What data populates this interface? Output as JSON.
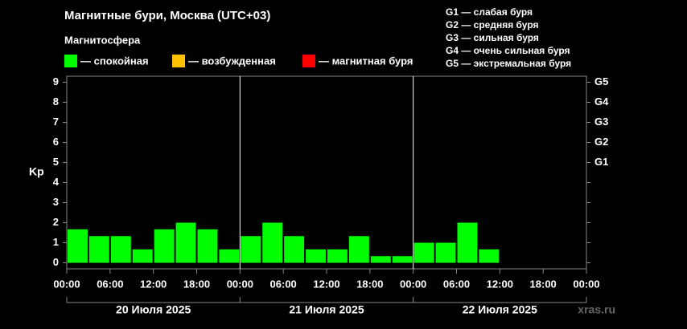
{
  "chart_data": {
    "type": "bar",
    "title": "Магнитные бури, Москва (UTC+03)",
    "legend_title": "Магнитосфера",
    "legend": [
      {
        "name": "— спокойная",
        "color": "#00ff00"
      },
      {
        "name": "— возбужденная",
        "color": "#ffc000"
      },
      {
        "name": "— магнитная буря",
        "color": "#ff0000"
      }
    ],
    "storm_levels": [
      "G1 — слабая буря",
      "G2 — средняя буря",
      "G3 — сильная буря",
      "G4 — очень сильная буря",
      "G5 — экстремальная буря"
    ],
    "y_label": "Kp",
    "values": [
      1.67,
      1.33,
      1.33,
      0.67,
      1.67,
      2,
      1.67,
      0.67,
      1.33,
      2,
      1.33,
      0.67,
      0.67,
      1.33,
      0.33,
      0.33,
      1,
      1,
      2,
      0.67,
      null,
      null,
      null,
      null
    ],
    "xtick_labels": [
      "00:00",
      "06:00",
      "12:00",
      "18:00",
      "00:00",
      "06:00",
      "12:00",
      "18:00",
      "00:00",
      "06:00",
      "12:00",
      "18:00",
      "00:00"
    ],
    "days": [
      "20 Июля 2025",
      "21 Июля 2025",
      "22 Июля 2025"
    ],
    "ylim": [
      -0.3,
      9.3
    ],
    "yticks": [
      0,
      1,
      2,
      3,
      4,
      5,
      6,
      7,
      8,
      9
    ],
    "y2lim": [
      -0.3,
      9.3
    ],
    "y2ticks": [
      {
        "value": 5,
        "label": "G1"
      },
      {
        "value": 6,
        "label": "G2"
      },
      {
        "value": 7,
        "label": "G3"
      },
      {
        "value": 8,
        "label": "G4"
      },
      {
        "value": 9,
        "label": "G5"
      }
    ],
    "source": "xras.ru"
  }
}
